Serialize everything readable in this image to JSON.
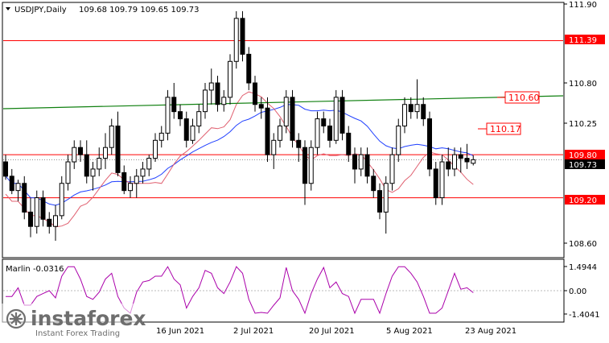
{
  "header": {
    "symbol": "USDJPY,Daily",
    "ohlc": "109.68 109.79 109.65 109.73"
  },
  "price_axis": {
    "ticks": [
      "111.90",
      "110.80",
      "110.25",
      "108.60"
    ],
    "current_price": "109.73"
  },
  "levels": [
    {
      "label": "111.39",
      "value": 111.39,
      "color": "#ff0000"
    },
    {
      "label": "109.80",
      "value": 109.8,
      "color": "#ff0000"
    },
    {
      "label": "109.20",
      "value": 109.2,
      "color": "#ff0000"
    }
  ],
  "annotations": [
    {
      "label": "110.60",
      "value": 110.6
    },
    {
      "label": "110.17",
      "value": 110.17
    }
  ],
  "indicator": {
    "name": "Marlin -0.0316",
    "ticks": [
      "1.4944",
      "0.00",
      "-1.4041"
    ],
    "color": "#aa00aa"
  },
  "time_axis": {
    "labels": [
      "16 Jun 2021",
      "2 Jul 2021",
      "20 Jul 2021",
      "5 Aug 2021",
      "23 Aug 2021"
    ]
  },
  "watermark": {
    "brand": "instaforex",
    "tagline": "Instant Forex Trading"
  },
  "colors": {
    "ma_blue": "#1f3fff",
    "ma_green": "#108010",
    "envelope_red": "#e06070",
    "candle": "#000000"
  },
  "chart_data": {
    "type": "candlestick",
    "candles": [
      [
        109.7,
        109.8,
        109.45,
        109.5
      ],
      [
        109.5,
        109.6,
        109.25,
        109.3
      ],
      [
        109.3,
        109.45,
        109.15,
        109.4
      ],
      [
        109.4,
        109.5,
        108.9,
        109.0
      ],
      [
        109.0,
        109.2,
        108.65,
        108.8
      ],
      [
        108.8,
        109.3,
        108.7,
        109.2
      ],
      [
        109.2,
        109.3,
        108.8,
        108.9
      ],
      [
        108.9,
        109.0,
        108.7,
        108.8
      ],
      [
        108.8,
        109.1,
        108.6,
        108.95
      ],
      [
        108.95,
        109.5,
        108.9,
        109.4
      ],
      [
        109.4,
        109.8,
        109.3,
        109.7
      ],
      [
        109.7,
        110.0,
        109.6,
        109.9
      ],
      [
        109.9,
        110.0,
        109.7,
        109.8
      ],
      [
        109.8,
        110.0,
        109.4,
        109.5
      ],
      [
        109.5,
        109.7,
        109.3,
        109.6
      ],
      [
        109.6,
        109.9,
        109.5,
        109.75
      ],
      [
        109.75,
        110.1,
        109.6,
        109.9
      ],
      [
        109.9,
        110.3,
        109.8,
        110.2
      ],
      [
        110.2,
        110.4,
        109.5,
        109.55
      ],
      [
        109.55,
        109.65,
        109.25,
        109.3
      ],
      [
        109.3,
        109.5,
        109.2,
        109.4
      ],
      [
        109.4,
        109.6,
        109.2,
        109.5
      ],
      [
        109.5,
        109.7,
        109.4,
        109.6
      ],
      [
        109.6,
        109.8,
        109.5,
        109.75
      ],
      [
        109.75,
        110.1,
        109.7,
        110.0
      ],
      [
        110.0,
        110.2,
        109.9,
        110.1
      ],
      [
        110.1,
        110.7,
        110.0,
        110.6
      ],
      [
        110.6,
        110.8,
        110.3,
        110.4
      ],
      [
        110.4,
        110.5,
        110.2,
        110.3
      ],
      [
        110.3,
        110.4,
        109.9,
        110.0
      ],
      [
        110.0,
        110.3,
        109.95,
        110.2
      ],
      [
        110.2,
        110.5,
        110.1,
        110.4
      ],
      [
        110.4,
        110.8,
        110.3,
        110.7
      ],
      [
        110.7,
        111.0,
        110.5,
        110.8
      ],
      [
        110.8,
        110.9,
        110.4,
        110.5
      ],
      [
        110.5,
        110.7,
        110.4,
        110.6
      ],
      [
        110.6,
        111.2,
        110.5,
        111.1
      ],
      [
        111.1,
        111.8,
        111.0,
        111.7
      ],
      [
        111.7,
        111.8,
        111.1,
        111.2
      ],
      [
        111.2,
        111.3,
        110.7,
        110.8
      ],
      [
        110.8,
        110.9,
        110.4,
        110.5
      ],
      [
        110.5,
        110.6,
        110.3,
        110.45
      ],
      [
        110.45,
        110.6,
        109.7,
        109.8
      ],
      [
        109.8,
        110.1,
        109.6,
        110.0
      ],
      [
        110.0,
        110.3,
        109.9,
        110.2
      ],
      [
        110.2,
        110.7,
        110.1,
        110.6
      ],
      [
        110.6,
        110.7,
        109.9,
        110.0
      ],
      [
        110.0,
        110.1,
        109.7,
        109.9
      ],
      [
        109.9,
        110.0,
        109.1,
        109.4
      ],
      [
        109.4,
        110.0,
        109.3,
        109.9
      ],
      [
        109.9,
        110.4,
        109.8,
        110.3
      ],
      [
        110.3,
        110.4,
        110.1,
        110.2
      ],
      [
        110.2,
        110.3,
        109.9,
        110.0
      ],
      [
        110.0,
        110.7,
        109.95,
        110.6
      ],
      [
        110.6,
        110.7,
        110.0,
        110.1
      ],
      [
        110.1,
        110.2,
        109.7,
        109.8
      ],
      [
        109.8,
        109.9,
        109.4,
        109.6
      ],
      [
        109.6,
        109.9,
        109.5,
        109.8
      ],
      [
        109.8,
        109.9,
        109.4,
        109.5
      ],
      [
        109.5,
        109.6,
        109.2,
        109.3
      ],
      [
        109.3,
        109.4,
        108.9,
        109.0
      ],
      [
        109.0,
        109.5,
        108.7,
        109.4
      ],
      [
        109.4,
        109.9,
        109.3,
        109.8
      ],
      [
        109.8,
        110.3,
        109.7,
        110.2
      ],
      [
        110.2,
        110.6,
        110.1,
        110.5
      ],
      [
        110.5,
        110.6,
        110.3,
        110.4
      ],
      [
        110.4,
        110.85,
        110.3,
        110.5
      ],
      [
        110.5,
        110.6,
        110.2,
        110.3
      ],
      [
        110.3,
        110.4,
        109.5,
        109.6
      ],
      [
        109.6,
        109.7,
        109.1,
        109.2
      ],
      [
        109.2,
        109.8,
        109.1,
        109.7
      ],
      [
        109.7,
        109.9,
        109.5,
        109.6
      ],
      [
        109.6,
        109.9,
        109.5,
        109.8
      ],
      [
        109.8,
        109.9,
        109.55,
        109.75
      ],
      [
        109.75,
        109.95,
        109.6,
        109.7
      ],
      [
        109.68,
        109.79,
        109.65,
        109.73
      ]
    ]
  }
}
